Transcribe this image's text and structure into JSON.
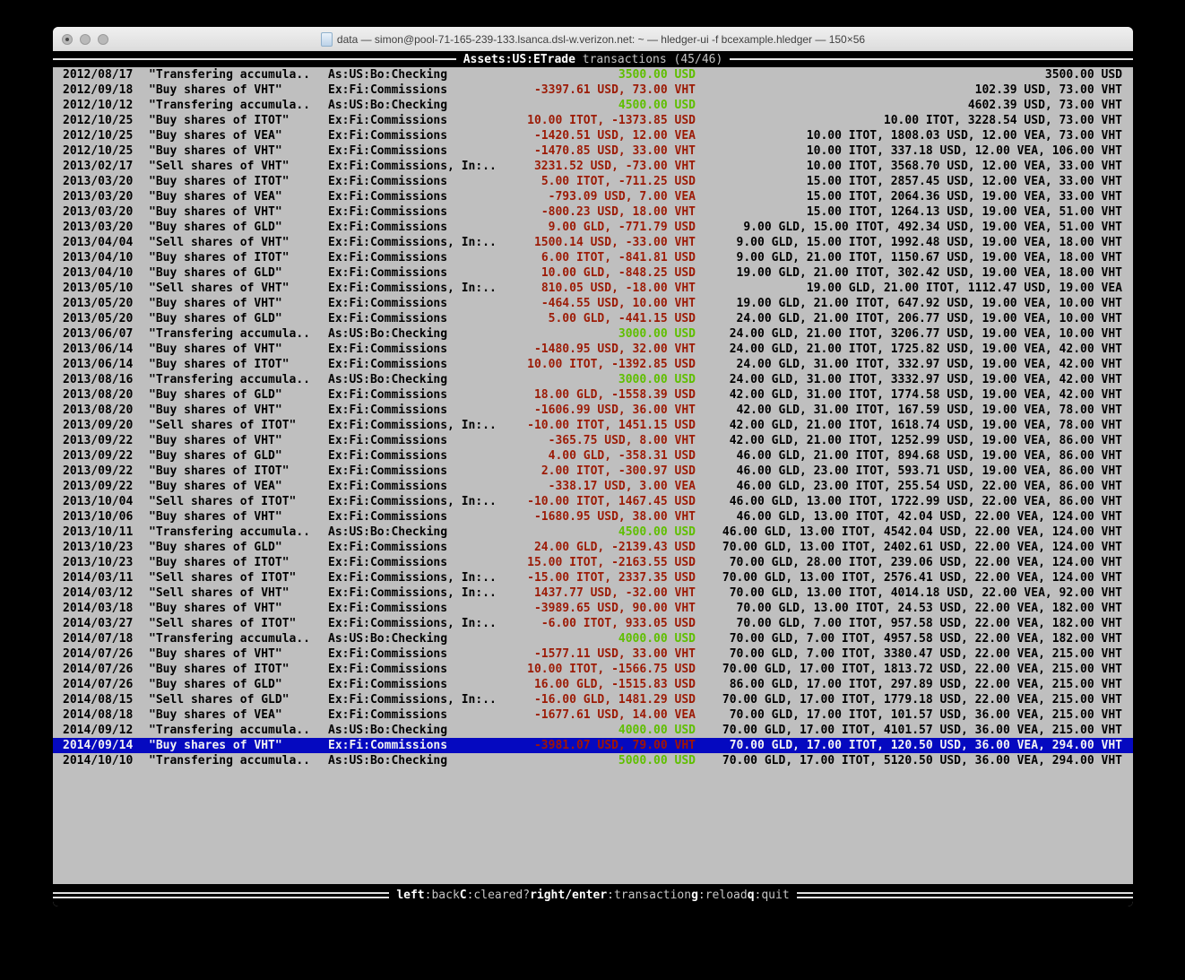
{
  "window": {
    "title": "data — simon@pool-71-165-239-133.lsanca.dsl-w.verizon.net: ~ — hledger-ui -f bcexample.hledger — 150×56",
    "traffic_lights": [
      "close",
      "minimize",
      "zoom"
    ]
  },
  "header": {
    "screen_title": "Assets:US:ETrade",
    "screen_subtitle": " transactions (45/46)"
  },
  "footer": {
    "hints": [
      {
        "key": "left",
        "label": ":back"
      },
      {
        "key": "C",
        "label": ":cleared?"
      },
      {
        "key": "right/enter",
        "label": ":transaction"
      },
      {
        "key": "g",
        "label": ":reload"
      },
      {
        "key": "q",
        "label": ":quit"
      }
    ]
  },
  "colors": {
    "terminal_bg": "#bfbfbf",
    "positive_amount": "#5fbf00",
    "negative_amount": "#9c1b06",
    "selection_bg": "#0509c0",
    "bar_bg": "#000000"
  },
  "transactions": [
    {
      "date": "2012/08/17",
      "desc": "\"Transfering accumula..",
      "acct": "As:US:Bo:Checking",
      "amt": "3500.00 USD",
      "amt_color": "green",
      "bal": "3500.00 USD",
      "selected": false
    },
    {
      "date": "2012/09/18",
      "desc": "\"Buy shares of VHT\"",
      "acct": "Ex:Fi:Commissions",
      "amt": "-3397.61 USD, 73.00 VHT",
      "amt_color": "red",
      "bal": "102.39 USD, 73.00 VHT",
      "selected": false
    },
    {
      "date": "2012/10/12",
      "desc": "\"Transfering accumula..",
      "acct": "As:US:Bo:Checking",
      "amt": "4500.00 USD",
      "amt_color": "green",
      "bal": "4602.39 USD, 73.00 VHT",
      "selected": false
    },
    {
      "date": "2012/10/25",
      "desc": "\"Buy shares of ITOT\"",
      "acct": "Ex:Fi:Commissions",
      "amt": "10.00 ITOT, -1373.85 USD",
      "amt_color": "red",
      "bal": "10.00 ITOT, 3228.54 USD, 73.00 VHT",
      "selected": false
    },
    {
      "date": "2012/10/25",
      "desc": "\"Buy shares of VEA\"",
      "acct": "Ex:Fi:Commissions",
      "amt": "-1420.51 USD, 12.00 VEA",
      "amt_color": "red",
      "bal": "10.00 ITOT, 1808.03 USD, 12.00 VEA, 73.00 VHT",
      "selected": false
    },
    {
      "date": "2012/10/25",
      "desc": "\"Buy shares of VHT\"",
      "acct": "Ex:Fi:Commissions",
      "amt": "-1470.85 USD, 33.00 VHT",
      "amt_color": "red",
      "bal": "10.00 ITOT, 337.18 USD, 12.00 VEA, 106.00 VHT",
      "selected": false
    },
    {
      "date": "2013/02/17",
      "desc": "\"Sell shares of VHT\"",
      "acct": "Ex:Fi:Commissions, In:..",
      "amt": "3231.52 USD, -73.00 VHT",
      "amt_color": "red",
      "bal": "10.00 ITOT, 3568.70 USD, 12.00 VEA, 33.00 VHT",
      "selected": false
    },
    {
      "date": "2013/03/20",
      "desc": "\"Buy shares of ITOT\"",
      "acct": "Ex:Fi:Commissions",
      "amt": "5.00 ITOT, -711.25 USD",
      "amt_color": "red",
      "bal": "15.00 ITOT, 2857.45 USD, 12.00 VEA, 33.00 VHT",
      "selected": false
    },
    {
      "date": "2013/03/20",
      "desc": "\"Buy shares of VEA\"",
      "acct": "Ex:Fi:Commissions",
      "amt": "-793.09 USD, 7.00 VEA",
      "amt_color": "red",
      "bal": "15.00 ITOT, 2064.36 USD, 19.00 VEA, 33.00 VHT",
      "selected": false
    },
    {
      "date": "2013/03/20",
      "desc": "\"Buy shares of VHT\"",
      "acct": "Ex:Fi:Commissions",
      "amt": "-800.23 USD, 18.00 VHT",
      "amt_color": "red",
      "bal": "15.00 ITOT, 1264.13 USD, 19.00 VEA, 51.00 VHT",
      "selected": false
    },
    {
      "date": "2013/03/20",
      "desc": "\"Buy shares of GLD\"",
      "acct": "Ex:Fi:Commissions",
      "amt": "9.00 GLD, -771.79 USD",
      "amt_color": "red",
      "bal": "9.00 GLD, 15.00 ITOT, 492.34 USD, 19.00 VEA, 51.00 VHT",
      "selected": false
    },
    {
      "date": "2013/04/04",
      "desc": "\"Sell shares of VHT\"",
      "acct": "Ex:Fi:Commissions, In:..",
      "amt": "1500.14 USD, -33.00 VHT",
      "amt_color": "red",
      "bal": "9.00 GLD, 15.00 ITOT, 1992.48 USD, 19.00 VEA, 18.00 VHT",
      "selected": false
    },
    {
      "date": "2013/04/10",
      "desc": "\"Buy shares of ITOT\"",
      "acct": "Ex:Fi:Commissions",
      "amt": "6.00 ITOT, -841.81 USD",
      "amt_color": "red",
      "bal": "9.00 GLD, 21.00 ITOT, 1150.67 USD, 19.00 VEA, 18.00 VHT",
      "selected": false
    },
    {
      "date": "2013/04/10",
      "desc": "\"Buy shares of GLD\"",
      "acct": "Ex:Fi:Commissions",
      "amt": "10.00 GLD, -848.25 USD",
      "amt_color": "red",
      "bal": "19.00 GLD, 21.00 ITOT, 302.42 USD, 19.00 VEA, 18.00 VHT",
      "selected": false
    },
    {
      "date": "2013/05/10",
      "desc": "\"Sell shares of VHT\"",
      "acct": "Ex:Fi:Commissions, In:..",
      "amt": "810.05 USD, -18.00 VHT",
      "amt_color": "red",
      "bal": "19.00 GLD, 21.00 ITOT, 1112.47 USD, 19.00 VEA",
      "selected": false
    },
    {
      "date": "2013/05/20",
      "desc": "\"Buy shares of VHT\"",
      "acct": "Ex:Fi:Commissions",
      "amt": "-464.55 USD, 10.00 VHT",
      "amt_color": "red",
      "bal": "19.00 GLD, 21.00 ITOT, 647.92 USD, 19.00 VEA, 10.00 VHT",
      "selected": false
    },
    {
      "date": "2013/05/20",
      "desc": "\"Buy shares of GLD\"",
      "acct": "Ex:Fi:Commissions",
      "amt": "5.00 GLD, -441.15 USD",
      "amt_color": "red",
      "bal": "24.00 GLD, 21.00 ITOT, 206.77 USD, 19.00 VEA, 10.00 VHT",
      "selected": false
    },
    {
      "date": "2013/06/07",
      "desc": "\"Transfering accumula..",
      "acct": "As:US:Bo:Checking",
      "amt": "3000.00 USD",
      "amt_color": "green",
      "bal": "24.00 GLD, 21.00 ITOT, 3206.77 USD, 19.00 VEA, 10.00 VHT",
      "selected": false
    },
    {
      "date": "2013/06/14",
      "desc": "\"Buy shares of VHT\"",
      "acct": "Ex:Fi:Commissions",
      "amt": "-1480.95 USD, 32.00 VHT",
      "amt_color": "red",
      "bal": "24.00 GLD, 21.00 ITOT, 1725.82 USD, 19.00 VEA, 42.00 VHT",
      "selected": false
    },
    {
      "date": "2013/06/14",
      "desc": "\"Buy shares of ITOT\"",
      "acct": "Ex:Fi:Commissions",
      "amt": "10.00 ITOT, -1392.85 USD",
      "amt_color": "red",
      "bal": "24.00 GLD, 31.00 ITOT, 332.97 USD, 19.00 VEA, 42.00 VHT",
      "selected": false
    },
    {
      "date": "2013/08/16",
      "desc": "\"Transfering accumula..",
      "acct": "As:US:Bo:Checking",
      "amt": "3000.00 USD",
      "amt_color": "green",
      "bal": "24.00 GLD, 31.00 ITOT, 3332.97 USD, 19.00 VEA, 42.00 VHT",
      "selected": false
    },
    {
      "date": "2013/08/20",
      "desc": "\"Buy shares of GLD\"",
      "acct": "Ex:Fi:Commissions",
      "amt": "18.00 GLD, -1558.39 USD",
      "amt_color": "red",
      "bal": "42.00 GLD, 31.00 ITOT, 1774.58 USD, 19.00 VEA, 42.00 VHT",
      "selected": false
    },
    {
      "date": "2013/08/20",
      "desc": "\"Buy shares of VHT\"",
      "acct": "Ex:Fi:Commissions",
      "amt": "-1606.99 USD, 36.00 VHT",
      "amt_color": "red",
      "bal": "42.00 GLD, 31.00 ITOT, 167.59 USD, 19.00 VEA, 78.00 VHT",
      "selected": false
    },
    {
      "date": "2013/09/20",
      "desc": "\"Sell shares of ITOT\"",
      "acct": "Ex:Fi:Commissions, In:..",
      "amt": "-10.00 ITOT, 1451.15 USD",
      "amt_color": "red",
      "bal": "42.00 GLD, 21.00 ITOT, 1618.74 USD, 19.00 VEA, 78.00 VHT",
      "selected": false
    },
    {
      "date": "2013/09/22",
      "desc": "\"Buy shares of VHT\"",
      "acct": "Ex:Fi:Commissions",
      "amt": "-365.75 USD, 8.00 VHT",
      "amt_color": "red",
      "bal": "42.00 GLD, 21.00 ITOT, 1252.99 USD, 19.00 VEA, 86.00 VHT",
      "selected": false
    },
    {
      "date": "2013/09/22",
      "desc": "\"Buy shares of GLD\"",
      "acct": "Ex:Fi:Commissions",
      "amt": "4.00 GLD, -358.31 USD",
      "amt_color": "red",
      "bal": "46.00 GLD, 21.00 ITOT, 894.68 USD, 19.00 VEA, 86.00 VHT",
      "selected": false
    },
    {
      "date": "2013/09/22",
      "desc": "\"Buy shares of ITOT\"",
      "acct": "Ex:Fi:Commissions",
      "amt": "2.00 ITOT, -300.97 USD",
      "amt_color": "red",
      "bal": "46.00 GLD, 23.00 ITOT, 593.71 USD, 19.00 VEA, 86.00 VHT",
      "selected": false
    },
    {
      "date": "2013/09/22",
      "desc": "\"Buy shares of VEA\"",
      "acct": "Ex:Fi:Commissions",
      "amt": "-338.17 USD, 3.00 VEA",
      "amt_color": "red",
      "bal": "46.00 GLD, 23.00 ITOT, 255.54 USD, 22.00 VEA, 86.00 VHT",
      "selected": false
    },
    {
      "date": "2013/10/04",
      "desc": "\"Sell shares of ITOT\"",
      "acct": "Ex:Fi:Commissions, In:..",
      "amt": "-10.00 ITOT, 1467.45 USD",
      "amt_color": "red",
      "bal": "46.00 GLD, 13.00 ITOT, 1722.99 USD, 22.00 VEA, 86.00 VHT",
      "selected": false
    },
    {
      "date": "2013/10/06",
      "desc": "\"Buy shares of VHT\"",
      "acct": "Ex:Fi:Commissions",
      "amt": "-1680.95 USD, 38.00 VHT",
      "amt_color": "red",
      "bal": "46.00 GLD, 13.00 ITOT, 42.04 USD, 22.00 VEA, 124.00 VHT",
      "selected": false
    },
    {
      "date": "2013/10/11",
      "desc": "\"Transfering accumula..",
      "acct": "As:US:Bo:Checking",
      "amt": "4500.00 USD",
      "amt_color": "green",
      "bal": "46.00 GLD, 13.00 ITOT, 4542.04 USD, 22.00 VEA, 124.00 VHT",
      "selected": false
    },
    {
      "date": "2013/10/23",
      "desc": "\"Buy shares of GLD\"",
      "acct": "Ex:Fi:Commissions",
      "amt": "24.00 GLD, -2139.43 USD",
      "amt_color": "red",
      "bal": "70.00 GLD, 13.00 ITOT, 2402.61 USD, 22.00 VEA, 124.00 VHT",
      "selected": false
    },
    {
      "date": "2013/10/23",
      "desc": "\"Buy shares of ITOT\"",
      "acct": "Ex:Fi:Commissions",
      "amt": "15.00 ITOT, -2163.55 USD",
      "amt_color": "red",
      "bal": "70.00 GLD, 28.00 ITOT, 239.06 USD, 22.00 VEA, 124.00 VHT",
      "selected": false
    },
    {
      "date": "2014/03/11",
      "desc": "\"Sell shares of ITOT\"",
      "acct": "Ex:Fi:Commissions, In:..",
      "amt": "-15.00 ITOT, 2337.35 USD",
      "amt_color": "red",
      "bal": "70.00 GLD, 13.00 ITOT, 2576.41 USD, 22.00 VEA, 124.00 VHT",
      "selected": false
    },
    {
      "date": "2014/03/12",
      "desc": "\"Sell shares of VHT\"",
      "acct": "Ex:Fi:Commissions, In:..",
      "amt": "1437.77 USD, -32.00 VHT",
      "amt_color": "red",
      "bal": "70.00 GLD, 13.00 ITOT, 4014.18 USD, 22.00 VEA, 92.00 VHT",
      "selected": false
    },
    {
      "date": "2014/03/18",
      "desc": "\"Buy shares of VHT\"",
      "acct": "Ex:Fi:Commissions",
      "amt": "-3989.65 USD, 90.00 VHT",
      "amt_color": "red",
      "bal": "70.00 GLD, 13.00 ITOT, 24.53 USD, 22.00 VEA, 182.00 VHT",
      "selected": false
    },
    {
      "date": "2014/03/27",
      "desc": "\"Sell shares of ITOT\"",
      "acct": "Ex:Fi:Commissions, In:..",
      "amt": "-6.00 ITOT, 933.05 USD",
      "amt_color": "red",
      "bal": "70.00 GLD, 7.00 ITOT, 957.58 USD, 22.00 VEA, 182.00 VHT",
      "selected": false
    },
    {
      "date": "2014/07/18",
      "desc": "\"Transfering accumula..",
      "acct": "As:US:Bo:Checking",
      "amt": "4000.00 USD",
      "amt_color": "green",
      "bal": "70.00 GLD, 7.00 ITOT, 4957.58 USD, 22.00 VEA, 182.00 VHT",
      "selected": false
    },
    {
      "date": "2014/07/26",
      "desc": "\"Buy shares of VHT\"",
      "acct": "Ex:Fi:Commissions",
      "amt": "-1577.11 USD, 33.00 VHT",
      "amt_color": "red",
      "bal": "70.00 GLD, 7.00 ITOT, 3380.47 USD, 22.00 VEA, 215.00 VHT",
      "selected": false
    },
    {
      "date": "2014/07/26",
      "desc": "\"Buy shares of ITOT\"",
      "acct": "Ex:Fi:Commissions",
      "amt": "10.00 ITOT, -1566.75 USD",
      "amt_color": "red",
      "bal": "70.00 GLD, 17.00 ITOT, 1813.72 USD, 22.00 VEA, 215.00 VHT",
      "selected": false
    },
    {
      "date": "2014/07/26",
      "desc": "\"Buy shares of GLD\"",
      "acct": "Ex:Fi:Commissions",
      "amt": "16.00 GLD, -1515.83 USD",
      "amt_color": "red",
      "bal": "86.00 GLD, 17.00 ITOT, 297.89 USD, 22.00 VEA, 215.00 VHT",
      "selected": false
    },
    {
      "date": "2014/08/15",
      "desc": "\"Sell shares of GLD\"",
      "acct": "Ex:Fi:Commissions, In:..",
      "amt": "-16.00 GLD, 1481.29 USD",
      "amt_color": "red",
      "bal": "70.00 GLD, 17.00 ITOT, 1779.18 USD, 22.00 VEA, 215.00 VHT",
      "selected": false
    },
    {
      "date": "2014/08/18",
      "desc": "\"Buy shares of VEA\"",
      "acct": "Ex:Fi:Commissions",
      "amt": "-1677.61 USD, 14.00 VEA",
      "amt_color": "red",
      "bal": "70.00 GLD, 17.00 ITOT, 101.57 USD, 36.00 VEA, 215.00 VHT",
      "selected": false
    },
    {
      "date": "2014/09/12",
      "desc": "\"Transfering accumula..",
      "acct": "As:US:Bo:Checking",
      "amt": "4000.00 USD",
      "amt_color": "green",
      "bal": "70.00 GLD, 17.00 ITOT, 4101.57 USD, 36.00 VEA, 215.00 VHT",
      "selected": false
    },
    {
      "date": "2014/09/14",
      "desc": "\"Buy shares of VHT\"",
      "acct": "Ex:Fi:Commissions",
      "amt": "-3981.07 USD, 79.00 VHT",
      "amt_color": "red",
      "bal": "70.00 GLD, 17.00 ITOT, 120.50 USD, 36.00 VEA, 294.00 VHT",
      "selected": true
    },
    {
      "date": "2014/10/10",
      "desc": "\"Transfering accumula..",
      "acct": "As:US:Bo:Checking",
      "amt": "5000.00 USD",
      "amt_color": "green",
      "bal": "70.00 GLD, 17.00 ITOT, 5120.50 USD, 36.00 VEA, 294.00 VHT",
      "selected": false
    }
  ]
}
